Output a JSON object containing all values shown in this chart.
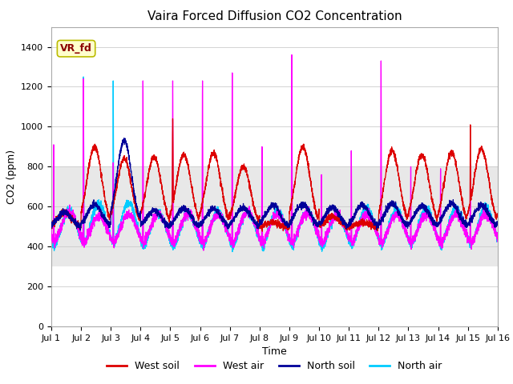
{
  "title": "Vaira Forced Diffusion CO2 Concentration",
  "xlabel": "Time",
  "ylabel": "CO2 (ppm)",
  "label_box": "VR_fd",
  "ylim": [
    0,
    1500
  ],
  "xlim_days": 15,
  "x_ticks": [
    "Jul 1",
    "Jul 2",
    "Jul 3",
    "Jul 4",
    "Jul 5",
    "Jul 6",
    "Jul 7",
    "Jul 8",
    "Jul 9",
    "Jul 10",
    "Jul 11",
    "Jul 12",
    "Jul 13",
    "Jul 14",
    "Jul 15",
    "Jul 16"
  ],
  "colors": {
    "west_soil": "#dd0000",
    "west_air": "#ff00ff",
    "north_soil": "#000099",
    "north_air": "#00ccff"
  },
  "legend_labels": [
    "West soil",
    "West air",
    "North soil",
    "North air"
  ],
  "shaded_band": [
    300,
    800
  ],
  "shaded_color": "#e8e8e8",
  "bg_color": "#f0f0f0",
  "plot_bg": "#ffffff",
  "title_fontsize": 11,
  "axis_fontsize": 9,
  "tick_fontsize": 8,
  "legend_fontsize": 9
}
